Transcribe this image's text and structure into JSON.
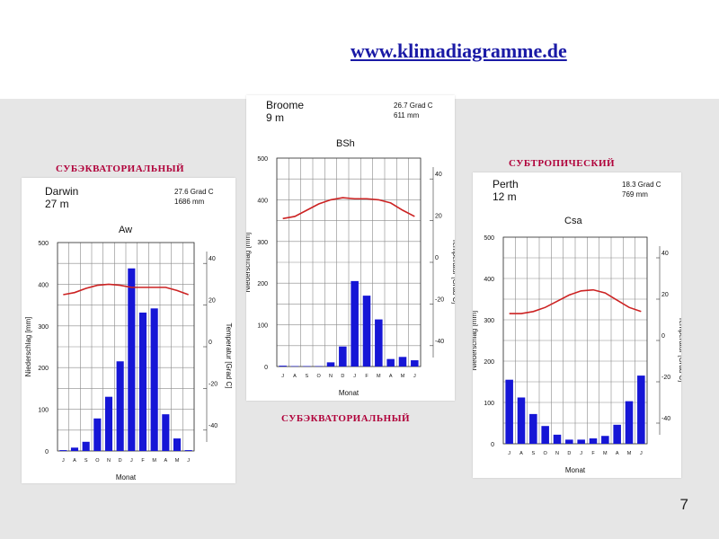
{
  "header": {
    "site_link": "www.klimadiagramme.de"
  },
  "labels": {
    "left_type": "СУБЭКВАТОРИАЛЬНЫЙ",
    "middle_type": "СУБЭКВАТОРИАЛЬНЫЙ",
    "right_type": "СУБТРОПИЧЕСКИЙ"
  },
  "slide_number": "7",
  "colors": {
    "precip_bar": "#1616d6",
    "temperature_line": "#cc2222",
    "grid": "#8a8a8a"
  },
  "chart_data": [
    {
      "type": "bar",
      "station": "Darwin",
      "elevation": "27 m",
      "mean_temp": "27.6 Grad C",
      "annual_precip": "1686 mm",
      "climate_class": "Aw",
      "xlabel": "Monat",
      "ylabel": "Niederschlag [mm]",
      "y2label": "Temperatur [Grad C]",
      "categories": [
        "J",
        "A",
        "S",
        "O",
        "N",
        "D",
        "J",
        "F",
        "M",
        "A",
        "M",
        "J"
      ],
      "ylim": [
        0,
        500
      ],
      "yticks": [
        0,
        100,
        200,
        300,
        400,
        500
      ],
      "y2lim": [
        -50,
        50
      ],
      "y2ticks": [
        -40,
        -20,
        0,
        20,
        40
      ],
      "series": [
        {
          "values": [
            2,
            8,
            22,
            78,
            130,
            215,
            438,
            332,
            342,
            88,
            30,
            2
          ]
        },
        {
          "type": "line",
          "values": [
            25,
            26,
            28,
            29.5,
            30,
            29.5,
            28.5,
            28.5,
            28.5,
            28.5,
            27,
            25
          ]
        }
      ],
      "grid": true
    },
    {
      "type": "bar",
      "station": "Broome",
      "elevation": "9 m",
      "mean_temp": "26.7 Grad C",
      "annual_precip": "611 mm",
      "climate_class": "BSh",
      "xlabel": "Monat",
      "ylabel": "Niederschlag [mm]",
      "y2label": "Temperatur [Grad C]",
      "categories": [
        "J",
        "A",
        "S",
        "O",
        "N",
        "D",
        "J",
        "F",
        "M",
        "A",
        "M",
        "J"
      ],
      "ylim": [
        0,
        500
      ],
      "yticks": [
        0,
        100,
        200,
        300,
        400,
        500
      ],
      "y2lim": [
        -50,
        50
      ],
      "y2ticks": [
        -40,
        -20,
        0,
        20,
        40
      ],
      "series": [
        {
          "values": [
            2,
            1,
            1,
            1,
            10,
            48,
            205,
            170,
            113,
            18,
            23,
            15
          ]
        },
        {
          "type": "line",
          "values": [
            21,
            22,
            25,
            28,
            30,
            31,
            30.5,
            30.5,
            30,
            28.5,
            25,
            22
          ]
        }
      ],
      "grid": true
    },
    {
      "type": "bar",
      "station": "Perth",
      "elevation": "12 m",
      "mean_temp": "18.3 Grad C",
      "annual_precip": "769 mm",
      "climate_class": "Csa",
      "xlabel": "Monat",
      "ylabel": "Niederschlag [mm]",
      "y2label": "Temperatur [Grad C]",
      "categories": [
        "J",
        "A",
        "S",
        "O",
        "N",
        "D",
        "J",
        "F",
        "M",
        "A",
        "M",
        "J"
      ],
      "ylim": [
        0,
        500
      ],
      "yticks": [
        0,
        100,
        200,
        300,
        400,
        500
      ],
      "y2lim": [
        -50,
        50
      ],
      "y2ticks": [
        -40,
        -20,
        0,
        20,
        40
      ],
      "series": [
        {
          "values": [
            155,
            112,
            72,
            43,
            22,
            10,
            10,
            13,
            19,
            46,
            103,
            165
          ]
        },
        {
          "type": "line",
          "values": [
            13,
            13,
            14,
            16,
            19,
            22,
            24,
            24.5,
            23,
            19.5,
            16,
            14
          ]
        }
      ],
      "grid": true
    }
  ]
}
